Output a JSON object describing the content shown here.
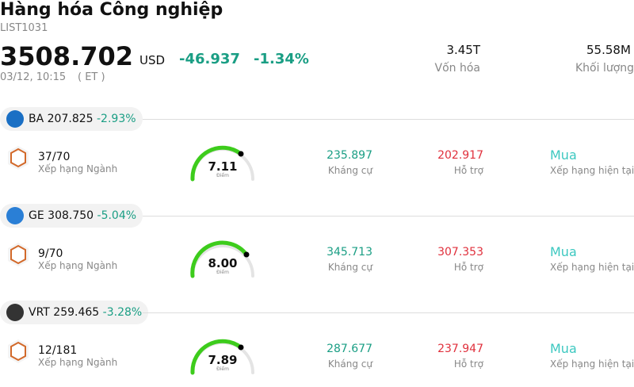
{
  "header": {
    "title": "Hàng hóa Công nghiệp",
    "code": "LIST1031",
    "price": "3508.702",
    "currency": "USD",
    "change": "-46.937",
    "change_pct": "-1.34%",
    "date": "03/12, 10:15",
    "timezone": "( ET )",
    "stats": [
      {
        "value": "3.45T",
        "label": "Vốn hóa"
      },
      {
        "value": "55.58M",
        "label": "Khối lượng"
      }
    ]
  },
  "stocks": [
    {
      "ticker": "BA",
      "price": "207.825",
      "change_pct": "-2.93%",
      "rank": "37/70",
      "rank_label": "Xếp hạng Ngành",
      "score": "7.11",
      "score_label": "Điểm",
      "resistance": "235.897",
      "resistance_label": "Kháng cự",
      "support": "202.917",
      "support_label": "Hỗ trợ",
      "rating": "Mua",
      "rating_label": "Xếp hạng hiện tại"
    },
    {
      "ticker": "GE",
      "price": "308.750",
      "change_pct": "-5.04%",
      "rank": "9/70",
      "rank_label": "Xếp hạng Ngành",
      "score": "8.00",
      "score_label": "Điểm",
      "resistance": "345.713",
      "resistance_label": "Kháng cự",
      "support": "307.353",
      "support_label": "Hỗ trợ",
      "rating": "Mua",
      "rating_label": "Xếp hạng hiện tại"
    },
    {
      "ticker": "VRT",
      "price": "259.465",
      "change_pct": "-3.28%",
      "rank": "12/181",
      "rank_label": "Xếp hạng Ngành",
      "score": "7.89",
      "score_label": "Điểm",
      "resistance": "287.677",
      "resistance_label": "Kháng cự",
      "support": "237.947",
      "support_label": "Hỗ trợ",
      "rating": "Mua",
      "rating_label": "Xếp hạng hiện tại"
    }
  ]
}
